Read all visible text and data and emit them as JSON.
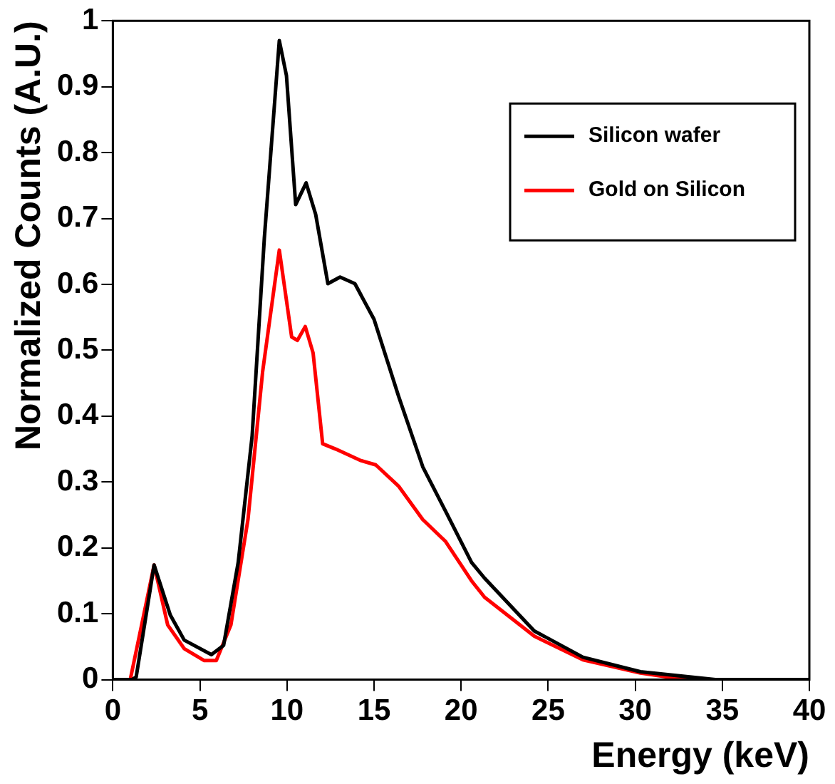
{
  "chart_data": {
    "type": "line",
    "xlabel": "Energy (keV)",
    "ylabel": "Normalized Counts (A.U.)",
    "xlim": [
      0,
      40
    ],
    "xticks": [
      0,
      5,
      10,
      15,
      20,
      25,
      30,
      35,
      40
    ],
    "ylim": [
      0,
      1
    ],
    "yticks": [
      0,
      0.1,
      0.2,
      0.3,
      0.4,
      0.5,
      0.6,
      0.7,
      0.8,
      0.9,
      1
    ],
    "grid": false,
    "legend": "top right",
    "marker": "none",
    "line_style": "solid",
    "series": [
      {
        "name": "Silicon wafer",
        "color": "#000000",
        "x": [
          0,
          1.1,
          1.34,
          2.37,
          3.3,
          4.1,
          5.66,
          6.36,
          7.2,
          8.0,
          8.7,
          9.56,
          9.97,
          10.5,
          11.1,
          11.65,
          12.35,
          13.05,
          13.9,
          15.0,
          16.4,
          17.8,
          19.1,
          20.6,
          21.35,
          24.2,
          27.0,
          30.3,
          34.6,
          40
        ],
        "values": [
          0,
          0,
          0.004,
          0.174,
          0.098,
          0.06,
          0.038,
          0.052,
          0.178,
          0.37,
          0.67,
          0.97,
          0.917,
          0.721,
          0.754,
          0.706,
          0.601,
          0.611,
          0.601,
          0.547,
          0.431,
          0.323,
          0.256,
          0.178,
          0.154,
          0.074,
          0.034,
          0.012,
          0,
          0
        ]
      },
      {
        "name": "Gold on Silicon",
        "color": "#ff0000",
        "x": [
          0,
          1.0,
          2.37,
          3.15,
          4.1,
          5.25,
          5.94,
          6.78,
          7.76,
          8.6,
          9.56,
          10.27,
          10.6,
          11.05,
          11.5,
          12.05,
          12.8,
          14.2,
          15.1,
          16.4,
          17.8,
          19.1,
          20.6,
          21.35,
          24.2,
          27.0,
          30.3,
          32.9,
          40
        ],
        "values": [
          0,
          0,
          0.174,
          0.083,
          0.047,
          0.029,
          0.029,
          0.083,
          0.243,
          0.467,
          0.652,
          0.52,
          0.515,
          0.536,
          0.496,
          0.358,
          0.35,
          0.333,
          0.326,
          0.294,
          0.243,
          0.21,
          0.15,
          0.125,
          0.066,
          0.03,
          0.01,
          0,
          0
        ]
      }
    ]
  }
}
